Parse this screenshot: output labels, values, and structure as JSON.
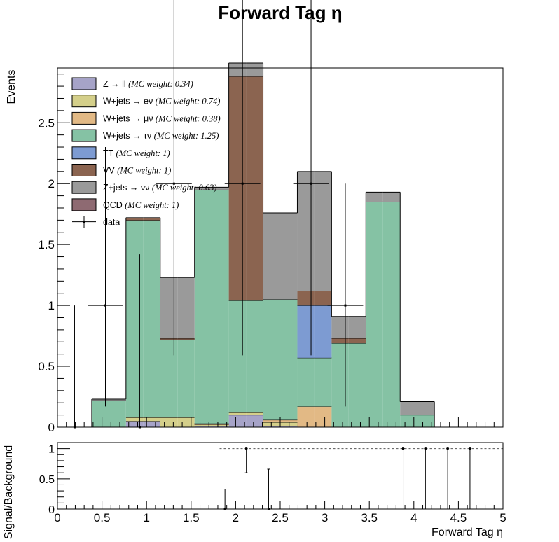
{
  "chart_data": [
    {
      "type": "bar",
      "stacked": true,
      "title": "Forward Tag η",
      "ylabel": "Events",
      "xlim": [
        0,
        5
      ],
      "ylim": [
        0,
        2.95
      ],
      "bin_edges": [
        0,
        0.1923,
        0.3846,
        0.5769,
        0.7692,
        0.9615,
        1.1538,
        1.3462,
        1.5385,
        1.7308,
        1.9231,
        2.1154,
        2.3077,
        2.5,
        2.6923,
        2.8846,
        3.0769,
        3.2692,
        3.4615,
        3.6538,
        3.8462,
        4.0385,
        4.2308,
        4.4231,
        4.6154,
        4.8077,
        5.0
      ],
      "y_ticks": [
        "0",
        "0.5",
        "1",
        "1.5",
        "2",
        "2.5"
      ],
      "y_tick_values": [
        0,
        0.5,
        1,
        1.5,
        2,
        2.5
      ],
      "legend_position": "top-left",
      "series": [
        {
          "name": "Z → ll",
          "weight_note": "(MC weight: 0.34)",
          "color": "#a6a3c8",
          "values": [
            0,
            0,
            0,
            0,
            0.05,
            0.05,
            0,
            0,
            0.01,
            0.01,
            0.1,
            0.1,
            0.01,
            0.01,
            0,
            0,
            0,
            0,
            0,
            0,
            0,
            0,
            0,
            0,
            0,
            0
          ]
        },
        {
          "name": "W+jets → eν",
          "weight_note": "(MC weight: 0.74)",
          "color": "#d4cf8a",
          "values": [
            0,
            0,
            0,
            0,
            0.03,
            0.03,
            0.08,
            0.08,
            0.01,
            0.01,
            0.02,
            0.02,
            0.03,
            0.03,
            0,
            0,
            0,
            0,
            0,
            0,
            0,
            0,
            0,
            0,
            0,
            0
          ]
        },
        {
          "name": "W+jets → μν",
          "weight_note": "(MC weight: 0.38)",
          "color": "#e2b985",
          "values": [
            0,
            0,
            0,
            0,
            0,
            0,
            0,
            0,
            0.01,
            0.01,
            0,
            0,
            0.02,
            0.02,
            0.17,
            0.17,
            0,
            0,
            0,
            0,
            0,
            0,
            0,
            0,
            0,
            0
          ]
        },
        {
          "name": "W+jets → τν",
          "weight_note": "(MC weight: 1.25)",
          "color": "#85c2a4",
          "values": [
            0,
            0,
            0.22,
            0.22,
            1.62,
            1.62,
            0.64,
            0.64,
            1.92,
            1.92,
            0.92,
            0.92,
            0.99,
            0.99,
            0.4,
            0.4,
            0.69,
            0.69,
            1.85,
            1.85,
            0.1,
            0.1,
            0,
            0,
            0,
            0
          ]
        },
        {
          "name": "TT",
          "weight_note": "(MC weight: 1)",
          "color": "#7d9bd2",
          "values": [
            0,
            0,
            0,
            0,
            0,
            0,
            0,
            0,
            0,
            0,
            0,
            0,
            0,
            0,
            0.43,
            0.43,
            0,
            0,
            0,
            0,
            0,
            0,
            0,
            0,
            0,
            0
          ]
        },
        {
          "name": "VV",
          "weight_note": "(MC weight: 1)",
          "color": "#8b6450",
          "values": [
            0,
            0,
            0,
            0,
            0.02,
            0.02,
            0.01,
            0.01,
            0,
            0,
            1.84,
            1.84,
            0,
            0,
            0.12,
            0.12,
            0.04,
            0.04,
            0,
            0,
            0,
            0,
            0,
            0,
            0,
            0
          ]
        },
        {
          "name": "Z+jets → νν",
          "weight_note": "(MC weight: 0.63)",
          "color": "#9a9a9a",
          "values": [
            0,
            0,
            0.01,
            0.01,
            0,
            0,
            0.5,
            0.5,
            0.02,
            0.02,
            0.11,
            0.11,
            0.71,
            0.71,
            0.98,
            0.98,
            0.18,
            0.18,
            0.08,
            0.08,
            0.11,
            0.11,
            0,
            0,
            0,
            0
          ]
        },
        {
          "name": "QCD",
          "weight_note": "(MC weight: 1)",
          "color": "#8e6a72",
          "values": [
            0,
            0,
            0,
            0,
            0,
            0,
            0,
            0,
            0,
            0,
            0,
            0,
            0,
            0,
            0,
            0,
            0,
            0,
            0,
            0,
            0,
            0,
            0,
            0,
            0,
            0
          ]
        }
      ],
      "data_points": [
        {
          "x": 0.1923,
          "y": 0,
          "xerr": 0.0962,
          "yerr_low": 0,
          "yerr_high": 1.0
        },
        {
          "x": 0.5385,
          "y": 1,
          "xerr": 0.2,
          "yerr_low": 0.83,
          "yerr_high": 1.3
        },
        {
          "x": 0.9231,
          "y": 0,
          "xerr": 0.06,
          "yerr_low": 0,
          "yerr_high": 1.42
        },
        {
          "x": 1.3077,
          "y": 2,
          "xerr": 0.2,
          "yerr_low": 1.41,
          "yerr_high": 2.65
        },
        {
          "x": 2.0769,
          "y": 2,
          "xerr": 0.2,
          "yerr_low": 1.41,
          "yerr_high": 2.65
        },
        {
          "x": 2.8462,
          "y": 2,
          "xerr": 0.2,
          "yerr_low": 1.41,
          "yerr_high": 2.65
        },
        {
          "x": 3.2308,
          "y": 1,
          "xerr": 0.2,
          "yerr_low": 0.83,
          "yerr_high": 1.0
        }
      ],
      "legend_data_label": "data"
    },
    {
      "type": "scatter",
      "ylabel": "Signal/Background",
      "xlabel": "Forward Tag η",
      "xlim": [
        0,
        5
      ],
      "ylim": [
        0,
        1.1
      ],
      "x_ticks": [
        "0",
        "0.5",
        "1",
        "1.5",
        "2",
        "2.5",
        "3",
        "3.5",
        "4",
        "4.5",
        "5"
      ],
      "x_tick_values": [
        0,
        0.5,
        1,
        1.5,
        2,
        2.5,
        3,
        3.5,
        4,
        4.5,
        5
      ],
      "y_ticks": [
        "0",
        "0.5",
        "1"
      ],
      "y_tick_values": [
        0,
        0.5,
        1
      ],
      "reference_line": 1,
      "points": [
        {
          "x": 1.88,
          "y": 0,
          "yerr_high": 0.33
        },
        {
          "x": 2.12,
          "y": 1,
          "yerr_low": 0.4
        },
        {
          "x": 2.37,
          "y": 0,
          "yerr_high": 0.66
        },
        {
          "x": 3.88,
          "y": 1,
          "yerr_low": 1.0
        },
        {
          "x": 4.13,
          "y": 1,
          "yerr_low": 1.0
        },
        {
          "x": 4.38,
          "y": 1,
          "yerr_low": 1.0
        },
        {
          "x": 4.63,
          "y": 1,
          "yerr_low": 1.0
        }
      ]
    }
  ]
}
